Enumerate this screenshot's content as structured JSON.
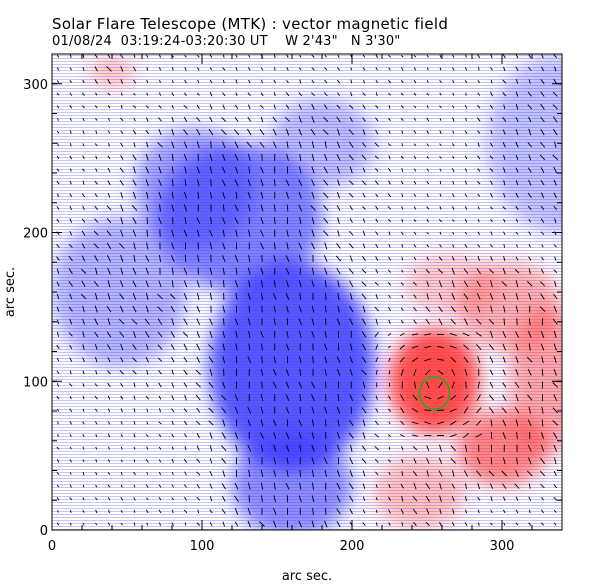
{
  "header": {
    "title": "Solar Flare Telescope (MTK) : vector magnetic field",
    "obs_date": "01/08/24",
    "obs_time_range": "03:19:24-03:20:30 UT",
    "position_w": "W 2'43\"",
    "position_n": "N 3'30\""
  },
  "chart_data": {
    "type": "heatmap",
    "description_fields": {
      "background": "line-of-sight magnetic field map (blue = negative polarity, red = positive polarity)",
      "overlay": "transverse field vectors drawn as short black line segments",
      "contour": "green circular contour around sunspot"
    },
    "xlabel": "arc sec.",
    "ylabel": "arc sec.",
    "xlim": [
      0,
      340
    ],
    "ylim": [
      0,
      320
    ],
    "x_ticks": [
      0,
      100,
      200,
      300
    ],
    "y_ticks": [
      0,
      100,
      200,
      300
    ],
    "colors": {
      "negative": "#3b3bff",
      "positive": "#ff3030",
      "contour": "#22aa22",
      "vector": "#000000"
    },
    "blobs": [
      {
        "polarity": "negative",
        "x": 160,
        "y": 110,
        "rx": 55,
        "ry": 70,
        "strength": 1.0
      },
      {
        "polarity": "negative",
        "x": 125,
        "y": 210,
        "rx": 55,
        "ry": 50,
        "strength": 0.75
      },
      {
        "polarity": "negative",
        "x": 160,
        "y": 30,
        "rx": 40,
        "ry": 35,
        "strength": 0.7
      },
      {
        "polarity": "negative",
        "x": 45,
        "y": 160,
        "rx": 45,
        "ry": 50,
        "strength": 0.45
      },
      {
        "polarity": "negative",
        "x": 95,
        "y": 230,
        "rx": 40,
        "ry": 40,
        "strength": 0.55
      },
      {
        "polarity": "negative",
        "x": 180,
        "y": 260,
        "rx": 35,
        "ry": 30,
        "strength": 0.4
      },
      {
        "polarity": "negative",
        "x": 340,
        "y": 260,
        "rx": 50,
        "ry": 60,
        "strength": 0.35
      },
      {
        "polarity": "positive",
        "x": 255,
        "y": 100,
        "rx": 30,
        "ry": 35,
        "strength": 1.0
      },
      {
        "polarity": "positive",
        "x": 300,
        "y": 55,
        "rx": 30,
        "ry": 25,
        "strength": 0.7
      },
      {
        "polarity": "positive",
        "x": 305,
        "y": 150,
        "rx": 35,
        "ry": 30,
        "strength": 0.45
      },
      {
        "polarity": "positive",
        "x": 330,
        "y": 100,
        "rx": 25,
        "ry": 50,
        "strength": 0.5
      },
      {
        "polarity": "positive",
        "x": 245,
        "y": 25,
        "rx": 30,
        "ry": 25,
        "strength": 0.35
      },
      {
        "polarity": "positive",
        "x": 40,
        "y": 308,
        "rx": 15,
        "ry": 10,
        "strength": 0.35
      },
      {
        "polarity": "positive",
        "x": 265,
        "y": 165,
        "rx": 30,
        "ry": 20,
        "strength": 0.3
      }
    ],
    "contour": {
      "x": 255,
      "y": 92,
      "rx": 10,
      "ry": 11
    },
    "vector_grid": {
      "dx": 8.5,
      "dy": 8.5,
      "length": 7
    }
  }
}
